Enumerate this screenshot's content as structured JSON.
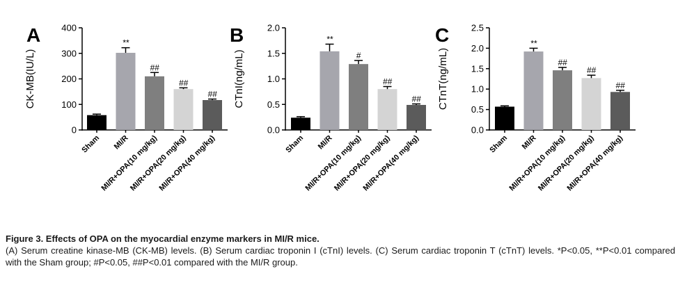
{
  "chart_data": [
    {
      "type": "bar",
      "panel_letter": "A",
      "ylabel": "CK-MB(IU/L)",
      "xlabel": "",
      "ylim": [
        0,
        400
      ],
      "yticks": [
        "0",
        "100",
        "200",
        "300",
        "400"
      ],
      "categories": [
        "Sham",
        "MI/R",
        "MI/R+OPA(10 mg/kg)",
        "MI/R+OPA(20 mg/kg)",
        "MI/R+OPA(40 mg/kg)"
      ],
      "values": [
        58,
        302,
        210,
        160,
        117
      ],
      "errors": [
        4,
        20,
        15,
        5,
        4
      ],
      "annotations": [
        "",
        "**",
        "##",
        "##",
        "##"
      ],
      "colors": [
        "#000000",
        "#a6a6ad",
        "#7f7f7f",
        "#d4d4d4",
        "#5b5b5b"
      ],
      "grid": false
    },
    {
      "type": "bar",
      "panel_letter": "B",
      "ylabel": "CTnI(ng/mL)",
      "xlabel": "",
      "ylim": [
        0,
        2.0
      ],
      "yticks": [
        "0.0",
        "0.5",
        "1.0",
        "1.5",
        "2.0"
      ],
      "categories": [
        "Sham",
        "MI/R",
        "MI/R+OPA(10 mg/kg)",
        "MI/R+OPA(20 mg/kg)",
        "MI/R+OPA(40 mg/kg)"
      ],
      "values": [
        0.24,
        1.54,
        1.29,
        0.8,
        0.49
      ],
      "errors": [
        0.02,
        0.14,
        0.07,
        0.05,
        0.02
      ],
      "annotations": [
        "",
        "**",
        "#",
        "##",
        "##"
      ],
      "colors": [
        "#000000",
        "#a6a6ad",
        "#7f7f7f",
        "#d4d4d4",
        "#5b5b5b"
      ],
      "grid": false
    },
    {
      "type": "bar",
      "panel_letter": "C",
      "ylabel": "CTnT(ng/mL)",
      "xlabel": "",
      "ylim": [
        0,
        2.5
      ],
      "yticks": [
        "0.0",
        "0.5",
        "1.0",
        "1.5",
        "2.0",
        "2.5"
      ],
      "categories": [
        "Sham",
        "MI/R",
        "MI/R+OPA(10 mg/kg)",
        "MI/R+OPA(20 mg/kg)",
        "MI/R+OPA(40 mg/kg)"
      ],
      "values": [
        0.57,
        1.92,
        1.46,
        1.27,
        0.93
      ],
      "errors": [
        0.02,
        0.08,
        0.07,
        0.07,
        0.04
      ],
      "annotations": [
        "",
        "**",
        "##",
        "##",
        "##"
      ],
      "colors": [
        "#000000",
        "#a6a6ad",
        "#7f7f7f",
        "#d4d4d4",
        "#5b5b5b"
      ],
      "grid": false
    }
  ],
  "caption": {
    "title": "Figure 3. Effects of OPA on the myocardial enzyme markers in MI/R mice.",
    "description": "(A) Serum creatine kinase-MB (CK-MB) levels. (B) Serum cardiac troponin I (cTnI) levels. (C) Serum cardiac troponin T (cTnT) levels. *P<0.05, **P<0.01 compared with the Sham group; #P<0.05, ##P<0.01 compared with the MI/R group."
  }
}
